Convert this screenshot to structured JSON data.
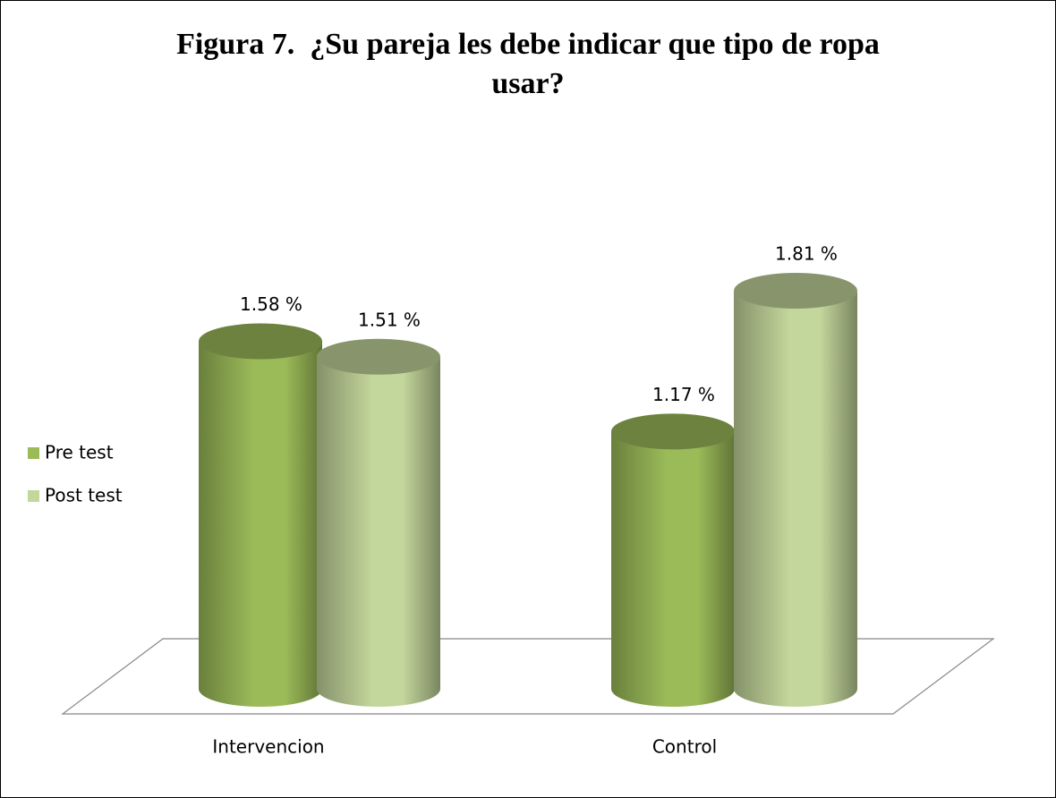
{
  "chart_data": {
    "type": "bar3d",
    "title": "Figura 7.  ¿Su pareja les debe indicar que tipo de ropa usar?",
    "categories": [
      "Intervencion",
      "Control"
    ],
    "series": [
      {
        "name": "Pre test",
        "color": "#9bbb59",
        "values": [
          1.58,
          1.17
        ],
        "value_labels": [
          "1.58 %",
          "1.17 %"
        ]
      },
      {
        "name": "Post test",
        "color": "#c3d69b",
        "values": [
          1.51,
          1.81
        ],
        "value_labels": [
          "1.51 %",
          "1.81 %"
        ]
      }
    ],
    "legend": "left"
  }
}
